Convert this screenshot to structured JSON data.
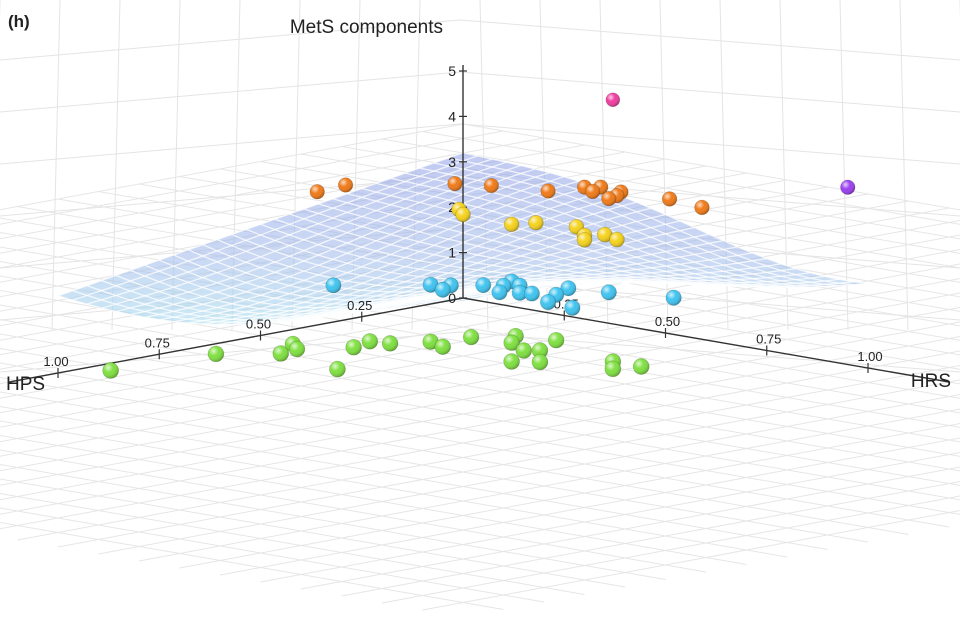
{
  "panel_label": "(h)",
  "chart_data": {
    "type": "scatter",
    "title": "",
    "zlabel": "MetS components",
    "xlabel": "HRS",
    "ylabel": "HPS",
    "x_ticks": [
      "0.25",
      "0.50",
      "0.75",
      "1.00"
    ],
    "y_ticks": [
      "0.25",
      "0.50",
      "0.75",
      "1.00"
    ],
    "z_ticks": [
      "0",
      "1",
      "2",
      "3",
      "4",
      "5"
    ],
    "xlim": [
      0,
      1
    ],
    "ylim": [
      0,
      1
    ],
    "zlim": [
      0,
      5
    ],
    "grid": true,
    "surface": true,
    "series": [
      {
        "component_count": 0,
        "color": "#7fe040",
        "points": [
          {
            "x": 0.05,
            "y": 0.92,
            "z": 0
          },
          {
            "x": 0.07,
            "y": 0.68,
            "z": 0
          },
          {
            "x": 0.1,
            "y": 0.52,
            "z": 0
          },
          {
            "x": 0.14,
            "y": 0.55,
            "z": 0
          },
          {
            "x": 0.15,
            "y": 0.6,
            "z": 0
          },
          {
            "x": 0.18,
            "y": 0.41,
            "z": 0
          },
          {
            "x": 0.2,
            "y": 0.47,
            "z": 0
          },
          {
            "x": 0.26,
            "y": 0.34,
            "z": 0
          },
          {
            "x": 0.31,
            "y": 0.36,
            "z": 0
          },
          {
            "x": 0.33,
            "y": 0.2,
            "z": 0
          },
          {
            "x": 0.37,
            "y": 0.25,
            "z": 0
          },
          {
            "x": 0.41,
            "y": 0.18,
            "z": 0
          },
          {
            "x": 0.44,
            "y": 0.29,
            "z": 0
          },
          {
            "x": 0.46,
            "y": 0.27,
            "z": 0
          },
          {
            "x": 0.5,
            "y": 0.38,
            "z": 0
          },
          {
            "x": 0.54,
            "y": 0.35,
            "z": 0
          },
          {
            "x": 0.63,
            "y": 0.26,
            "z": 0
          },
          {
            "x": 0.68,
            "y": 0.31,
            "z": 0
          },
          {
            "x": 0.7,
            "y": 0.26,
            "z": 0
          },
          {
            "x": 0.33,
            "y": 0.64,
            "z": 0
          },
          {
            "x": 0.22,
            "y": 0.4,
            "z": 0
          },
          {
            "x": 0.28,
            "y": 0.26,
            "z": 0
          }
        ]
      },
      {
        "component_count": 1,
        "color": "#3fc4f0",
        "points": [
          {
            "x": 0.06,
            "y": 0.38,
            "z": 1
          },
          {
            "x": 0.18,
            "y": 0.26,
            "z": 1
          },
          {
            "x": 0.21,
            "y": 0.24,
            "z": 1
          },
          {
            "x": 0.23,
            "y": 0.28,
            "z": 1
          },
          {
            "x": 0.25,
            "y": 0.2,
            "z": 1
          },
          {
            "x": 0.28,
            "y": 0.18,
            "z": 1
          },
          {
            "x": 0.3,
            "y": 0.16,
            "z": 1
          },
          {
            "x": 0.35,
            "y": 0.21,
            "z": 1
          },
          {
            "x": 0.37,
            "y": 0.2,
            "z": 1
          },
          {
            "x": 0.38,
            "y": 0.12,
            "z": 1
          },
          {
            "x": 0.41,
            "y": 0.18,
            "z": 1
          },
          {
            "x": 0.45,
            "y": 0.24,
            "z": 1
          },
          {
            "x": 0.52,
            "y": 0.25,
            "z": 1
          },
          {
            "x": 0.58,
            "y": 0.06,
            "z": 1
          },
          {
            "x": 0.46,
            "y": 0.1,
            "z": 1
          },
          {
            "x": 0.26,
            "y": 0.14,
            "z": 1
          },
          {
            "x": 0.32,
            "y": 0.23,
            "z": 1
          }
        ]
      },
      {
        "component_count": 2,
        "color": "#f5d21c",
        "points": [
          {
            "x": 0.05,
            "y": 0.05,
            "z": 2
          },
          {
            "x": 0.2,
            "y": 0.02,
            "z": 2
          },
          {
            "x": 0.18,
            "y": 0.06,
            "z": 2
          },
          {
            "x": 0.28,
            "y": 0.0,
            "z": 2
          },
          {
            "x": 0.35,
            "y": 0.05,
            "z": 2
          },
          {
            "x": 0.37,
            "y": 0.02,
            "z": 2
          },
          {
            "x": 0.42,
            "y": 0.04,
            "z": 2
          },
          {
            "x": 0.38,
            "y": 0.08,
            "z": 2
          },
          {
            "x": 0.01,
            "y": 0.02,
            "z": 2
          }
        ]
      },
      {
        "component_count": 3,
        "color": "#f07a18",
        "points": [
          {
            "x": 0.02,
            "y": 0.38,
            "z": 3
          },
          {
            "x": 0.01,
            "y": 0.3,
            "z": 3
          },
          {
            "x": 0.14,
            "y": 0.16,
            "z": 3
          },
          {
            "x": 0.2,
            "y": 0.13,
            "z": 3
          },
          {
            "x": 0.31,
            "y": 0.1,
            "z": 3
          },
          {
            "x": 0.33,
            "y": 0.03,
            "z": 3
          },
          {
            "x": 0.35,
            "y": 0.01,
            "z": 3
          },
          {
            "x": 0.37,
            "y": 0.05,
            "z": 3
          },
          {
            "x": 0.41,
            "y": 0.02,
            "z": 3
          },
          {
            "x": 0.43,
            "y": 0.05,
            "z": 3
          },
          {
            "x": 0.44,
            "y": 0.08,
            "z": 3
          },
          {
            "x": 0.52,
            "y": 0.01,
            "z": 3
          },
          {
            "x": 0.62,
            "y": 0.03,
            "z": 3
          }
        ]
      },
      {
        "component_count": 4,
        "color": "#9b3ff0",
        "points": [
          {
            "x": 0.98,
            "y": 0.03,
            "z": 4
          }
        ]
      },
      {
        "component_count": 5,
        "color": "#f03ca0",
        "points": [
          {
            "x": 0.39,
            "y": 0.02,
            "z": 5
          }
        ]
      }
    ]
  }
}
